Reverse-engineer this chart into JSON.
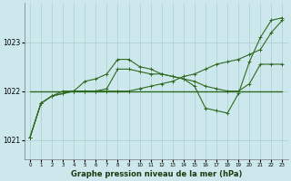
{
  "title": "Graphe pression niveau de la mer (hPa)",
  "bg_color": "#cde8ec",
  "grid_color": "#aacccc",
  "line_color": "#2d6a1f",
  "xlim": [
    -0.5,
    23.5
  ],
  "ylim": [
    1020.6,
    1023.8
  ],
  "yticks": [
    1021,
    1022,
    1023
  ],
  "xtick_labels": [
    "0",
    "1",
    "2",
    "3",
    "4",
    "5",
    "6",
    "7",
    "8",
    "9",
    "10",
    "11",
    "12",
    "13",
    "14",
    "15",
    "16",
    "17",
    "18",
    "19",
    "20",
    "21",
    "22",
    "23"
  ],
  "flat_line_x": [
    0,
    23
  ],
  "flat_line_y": [
    1022.0,
    1022.0
  ],
  "line1_x": [
    0,
    1,
    2,
    3,
    4,
    5,
    6,
    7,
    8,
    9,
    10,
    11,
    12,
    13,
    14,
    15,
    16,
    17,
    18,
    19,
    20,
    21,
    22,
    23
  ],
  "line1_y": [
    1021.05,
    1021.75,
    1021.9,
    1021.95,
    1022.0,
    1022.0,
    1022.0,
    1022.05,
    1022.45,
    1022.45,
    1022.4,
    1022.35,
    1022.35,
    1022.3,
    1022.25,
    1022.1,
    1021.65,
    1021.6,
    1021.55,
    1021.95,
    1022.6,
    1023.1,
    1023.45,
    1023.5
  ],
  "line2_x": [
    0,
    1,
    2,
    3,
    4,
    5,
    6,
    7,
    8,
    9,
    10,
    11,
    12,
    13,
    14,
    15,
    16,
    17,
    18,
    19,
    20,
    21,
    22,
    23
  ],
  "line2_y": [
    1021.05,
    1021.75,
    1021.9,
    1021.95,
    1022.0,
    1022.2,
    1022.25,
    1022.35,
    1022.65,
    1022.65,
    1022.5,
    1022.45,
    1022.35,
    1022.3,
    1022.25,
    1022.2,
    1022.1,
    1022.05,
    1022.0,
    1022.0,
    1022.15,
    1022.55,
    1022.55,
    1022.55
  ],
  "line3_x": [
    0,
    1,
    2,
    3,
    4,
    5,
    6,
    7,
    8,
    9,
    10,
    11,
    12,
    13,
    14,
    15,
    16,
    17,
    18,
    19,
    20,
    21,
    22,
    23
  ],
  "line3_y": [
    1021.05,
    1021.75,
    1021.9,
    1022.0,
    1022.0,
    1022.0,
    1022.0,
    1022.0,
    1022.0,
    1022.0,
    1022.05,
    1022.1,
    1022.15,
    1022.2,
    1022.3,
    1022.35,
    1022.45,
    1022.55,
    1022.6,
    1022.65,
    1022.75,
    1022.85,
    1023.2,
    1023.45
  ]
}
